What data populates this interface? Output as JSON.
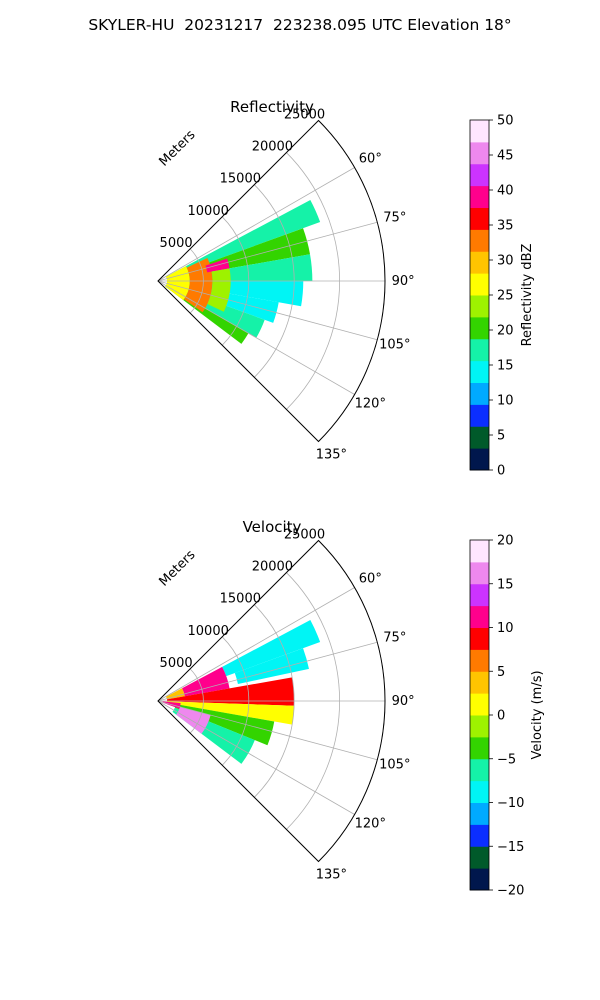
{
  "suptitle": "SKYLER-HU  20231217  223238.095 UTC Elevation 18°",
  "chart_data": [
    {
      "type": "heatmap",
      "subtype": "polar-sector",
      "title": "Reflectivity",
      "range_label": "Meters",
      "range_ticks": [
        5000,
        10000,
        15000,
        20000,
        25000
      ],
      "range_tick_labels": [
        "5000",
        "10000",
        "15000",
        "20000",
        "25000"
      ],
      "range_max": 25000,
      "azimuth_range_deg": [
        45,
        135
      ],
      "azimuth_ticks": [
        60,
        75,
        90,
        105,
        120,
        135
      ],
      "azimuth_tick_labels": [
        "60°",
        "75°",
        "90°",
        "105°",
        "120°",
        "135°"
      ],
      "grid": true,
      "colorbar": {
        "label": "Reflectivity dBZ",
        "vmin": 0,
        "vmax": 50,
        "ticks": [
          0,
          5,
          10,
          15,
          20,
          25,
          30,
          35,
          40,
          45,
          50
        ],
        "tick_labels": [
          "0",
          "5",
          "10",
          "15",
          "20",
          "25",
          "30",
          "35",
          "40",
          "45",
          "50"
        ],
        "colors": [
          "#00174d",
          "#005a2a",
          "#0b2eff",
          "#00aaff",
          "#00f5f5",
          "#15f2a8",
          "#33d400",
          "#9ef200",
          "#ffff00",
          "#ffc400",
          "#ff7a00",
          "#ff0000",
          "#ff008c",
          "#cc33ff",
          "#ee88ee",
          "#ffe6ff"
        ]
      },
      "echo": {
        "azimuth_extent_deg": [
          60,
          128
        ],
        "range_extent_m": [
          0,
          19000
        ],
        "cells": [
          {
            "az": [
              62,
              70
            ],
            "r": [
              1000,
              19000
            ],
            "value": 18
          },
          {
            "az": [
              70,
              80
            ],
            "r": [
              1000,
              17000
            ],
            "value": 19
          },
          {
            "az": [
              80,
              90
            ],
            "r": [
              1000,
              17000
            ],
            "value": 16
          },
          {
            "az": [
              90,
              100
            ],
            "r": [
              1000,
              16000
            ],
            "value": 14
          },
          {
            "az": [
              100,
              110
            ],
            "r": [
              1000,
              13500
            ],
            "value": 15
          },
          {
            "az": [
              110,
              120
            ],
            "r": [
              1000,
              12500
            ],
            "value": 18
          },
          {
            "az": [
              120,
              127
            ],
            "r": [
              1000,
              11500
            ],
            "value": 19
          },
          {
            "az": [
              62,
              127
            ],
            "r": [
              1000,
              3500
            ],
            "value": 28
          },
          {
            "az": [
              65,
              125
            ],
            "r": [
              3500,
              6000
            ],
            "value": 33
          },
          {
            "az": [
              72,
              80
            ],
            "r": [
              5500,
              8000
            ],
            "value": 40
          },
          {
            "az": [
              80,
              115
            ],
            "r": [
              6000,
              8000
            ],
            "value": 24
          }
        ]
      }
    },
    {
      "type": "heatmap",
      "subtype": "polar-sector",
      "title": "Velocity",
      "range_label": "Meters",
      "range_ticks": [
        5000,
        10000,
        15000,
        20000,
        25000
      ],
      "range_tick_labels": [
        "5000",
        "10000",
        "15000",
        "20000",
        "25000"
      ],
      "range_max": 25000,
      "azimuth_range_deg": [
        45,
        135
      ],
      "azimuth_ticks": [
        60,
        75,
        90,
        105,
        120,
        135
      ],
      "azimuth_tick_labels": [
        "60°",
        "75°",
        "90°",
        "105°",
        "120°",
        "135°"
      ],
      "grid": true,
      "colorbar": {
        "label": "Velocity (m/s)",
        "vmin": -20,
        "vmax": 20,
        "ticks": [
          -20,
          -15,
          -10,
          -5,
          0,
          5,
          10,
          15,
          20
        ],
        "tick_labels": [
          "−20",
          "−15",
          "−10",
          "−5",
          "0",
          "5",
          "10",
          "15",
          "20"
        ],
        "colors": [
          "#00174d",
          "#005a2a",
          "#0b2eff",
          "#00aaff",
          "#00f5f5",
          "#15f2a8",
          "#33d400",
          "#9ef200",
          "#ffff00",
          "#ffc400",
          "#ff7a00",
          "#ff0000",
          "#ff008c",
          "#cc33ff",
          "#ee88ee",
          "#ffe6ff"
        ]
      },
      "echo": {
        "azimuth_extent_deg": [
          60,
          128
        ],
        "range_extent_m": [
          0,
          19000
        ],
        "cells": [
          {
            "az": [
              62,
              70
            ],
            "r": [
              8000,
              19000
            ],
            "value": -8
          },
          {
            "az": [
              70,
              78
            ],
            "r": [
              9000,
              17000
            ],
            "value": -10
          },
          {
            "az": [
              62,
              80
            ],
            "r": [
              3000,
              8000
            ],
            "value": 11
          },
          {
            "az": [
              62,
              80
            ],
            "r": [
              1000,
              3000
            ],
            "value": 3
          },
          {
            "az": [
              80,
              92
            ],
            "r": [
              1000,
              15000
            ],
            "value": 9
          },
          {
            "az": [
              92,
              100
            ],
            "r": [
              1000,
              15000
            ],
            "value": 1
          },
          {
            "az": [
              100,
              112
            ],
            "r": [
              2000,
              13000
            ],
            "value": -3
          },
          {
            "az": [
              112,
              127
            ],
            "r": [
              2000,
              11500
            ],
            "value": -7
          },
          {
            "az": [
              105,
              127
            ],
            "r": [
              2500,
              6000
            ],
            "value": 15
          },
          {
            "az": [
              95,
              110
            ],
            "r": [
              500,
              2500
            ],
            "value": 12
          }
        ]
      }
    }
  ]
}
